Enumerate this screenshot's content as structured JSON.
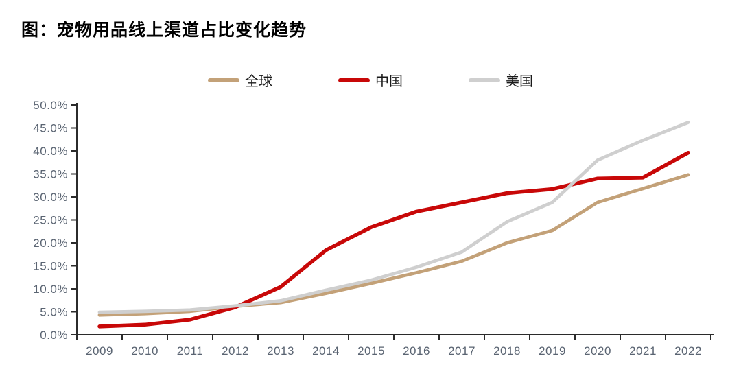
{
  "page_title": "图：宠物用品线上渠道占比变化趋势",
  "colors": {
    "axis": "#2b2b2b",
    "tick_label": "#5A6472",
    "title": "#000000",
    "background": "#ffffff"
  },
  "chart_data": {
    "type": "line",
    "title": "图：宠物用品线上渠道占比变化趋势",
    "x": [
      "2009",
      "2010",
      "2011",
      "2012",
      "2013",
      "2014",
      "2015",
      "2016",
      "2017",
      "2018",
      "2019",
      "2020",
      "2021",
      "2022"
    ],
    "series": [
      {
        "key": "global",
        "name": "全球",
        "color": "#C3A178",
        "values": [
          4.3,
          4.6,
          5.1,
          6.2,
          7.0,
          9.0,
          11.2,
          13.5,
          16.0,
          20.0,
          22.7,
          28.8,
          31.8,
          34.8
        ]
      },
      {
        "key": "china",
        "name": "中国",
        "color": "#C80808",
        "values": [
          1.8,
          2.2,
          3.3,
          6.0,
          10.4,
          18.4,
          23.4,
          26.8,
          28.8,
          30.8,
          31.7,
          34.0,
          34.2,
          39.6
        ]
      },
      {
        "key": "usa",
        "name": "美国",
        "color": "#CFCFCF",
        "values": [
          4.9,
          5.1,
          5.4,
          6.3,
          7.4,
          9.7,
          11.9,
          14.7,
          18.0,
          24.6,
          28.8,
          38.0,
          42.3,
          46.2
        ]
      }
    ],
    "xlabel": "",
    "ylabel": "",
    "ylim": [
      0,
      50
    ],
    "ytick_step": 5,
    "ytick_labels": [
      "0.0%",
      "5.0%",
      "10.0%",
      "15.0%",
      "20.0%",
      "25.0%",
      "30.0%",
      "35.0%",
      "40.0%",
      "45.0%",
      "50.0%"
    ],
    "grid": false,
    "legend_position": "top-center"
  }
}
